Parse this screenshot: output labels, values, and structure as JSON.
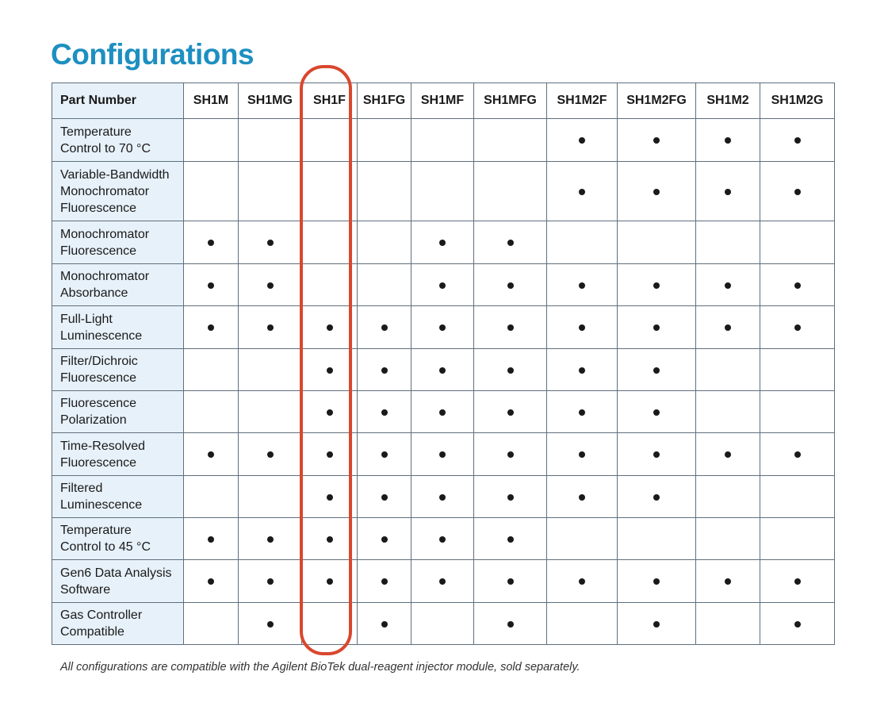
{
  "title": "Configurations",
  "table": {
    "header_label": "Part Number",
    "columns": [
      "SH1M",
      "SH1MG",
      "SH1F",
      "SH1FG",
      "SH1MF",
      "SH1MFG",
      "SH1M2F",
      "SH1M2FG",
      "SH1M2",
      "SH1M2G"
    ],
    "highlighted_column": "SH1F",
    "highlight_color": "#d9472d",
    "marker_symbol": "•",
    "rows": [
      {
        "lines": [
          "Temperature",
          "Control to 70 °C"
        ],
        "marks": [
          0,
          0,
          0,
          0,
          0,
          0,
          1,
          1,
          1,
          1
        ]
      },
      {
        "lines": [
          "Variable-Bandwidth",
          "Monochromator",
          "Fluorescence"
        ],
        "marks": [
          0,
          0,
          0,
          0,
          0,
          0,
          1,
          1,
          1,
          1
        ]
      },
      {
        "lines": [
          "Monochromator",
          "Fluorescence"
        ],
        "marks": [
          1,
          1,
          0,
          0,
          1,
          1,
          0,
          0,
          0,
          0
        ]
      },
      {
        "lines": [
          "Monochromator",
          "Absorbance"
        ],
        "marks": [
          1,
          1,
          0,
          0,
          1,
          1,
          1,
          1,
          1,
          1
        ]
      },
      {
        "lines": [
          "Full-Light",
          "Luminescence"
        ],
        "marks": [
          1,
          1,
          1,
          1,
          1,
          1,
          1,
          1,
          1,
          1
        ]
      },
      {
        "lines": [
          "Filter/Dichroic",
          "Fluorescence"
        ],
        "marks": [
          0,
          0,
          1,
          1,
          1,
          1,
          1,
          1,
          0,
          0
        ]
      },
      {
        "lines": [
          "Fluorescence",
          "Polarization"
        ],
        "marks": [
          0,
          0,
          1,
          1,
          1,
          1,
          1,
          1,
          0,
          0
        ]
      },
      {
        "lines": [
          "Time-Resolved",
          "Fluorescence"
        ],
        "marks": [
          1,
          1,
          1,
          1,
          1,
          1,
          1,
          1,
          1,
          1
        ]
      },
      {
        "lines": [
          "Filtered",
          "Luminescence"
        ],
        "marks": [
          0,
          0,
          1,
          1,
          1,
          1,
          1,
          1,
          0,
          0
        ]
      },
      {
        "lines": [
          "Temperature",
          "Control to 45 °C"
        ],
        "marks": [
          1,
          1,
          1,
          1,
          1,
          1,
          0,
          0,
          0,
          0
        ]
      },
      {
        "lines": [
          "Gen6 Data Analysis",
          "Software"
        ],
        "marks": [
          1,
          1,
          1,
          1,
          1,
          1,
          1,
          1,
          1,
          1
        ]
      },
      {
        "lines": [
          "Gas Controller",
          "Compatible"
        ],
        "marks": [
          0,
          1,
          0,
          1,
          0,
          1,
          0,
          1,
          0,
          1
        ]
      }
    ]
  },
  "footnote": "All configurations are compatible with the Agilent BioTek dual-reagent injector module, sold separately."
}
